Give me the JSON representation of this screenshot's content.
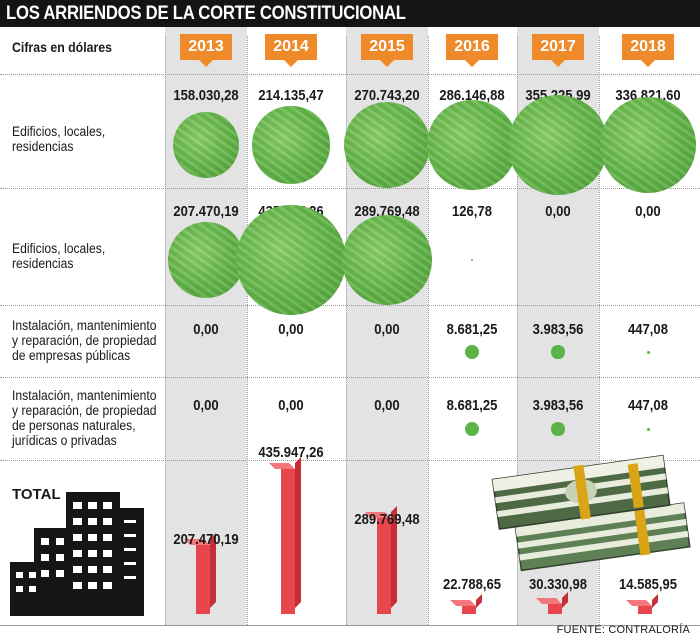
{
  "title": "LOS ARRIENDOS DE LA CORTE CONSTITUCIONAL",
  "subtitle": "Cifras en dólares",
  "source": "FUENTE: CONTRALORÍA",
  "total_label": "TOTAL",
  "colors": {
    "header_bg": "#141414",
    "year_badge": "#ef8a2b",
    "coin_green": "#62b548",
    "bar_red": "#e9454c",
    "column_shade": "#e3e3e4"
  },
  "chart_data": {
    "type": "table",
    "title": "LOS ARRIENDOS DE LA CORTE CONSTITUCIONAL",
    "subtitle": "Cifras en dólares",
    "years": [
      "2013",
      "2014",
      "2015",
      "2016",
      "2017",
      "2018"
    ],
    "rows": [
      {
        "label": "Edificios, locales, residencias",
        "display": [
          "158.030,28",
          "214.135,47",
          "270.743,20",
          "286.146,88",
          "355.225,99",
          "336.821,60"
        ],
        "values": [
          158030.28,
          214135.47,
          270743.2,
          286146.88,
          355225.99,
          336821.6
        ]
      },
      {
        "label": "Edificios, locales, residencias",
        "display": [
          "207.470,19",
          "435.947,26",
          "289.769,48",
          "126,78",
          "0,00",
          "0,00"
        ],
        "values": [
          207470.19,
          435947.26,
          289769.48,
          126.78,
          0,
          0
        ]
      },
      {
        "label": "Instalación, mantenimiento y reparación, de propiedad de empresas públicas",
        "display": [
          "0,00",
          "0,00",
          "0,00",
          "8.681,25",
          "3.983,56",
          "447,08"
        ],
        "values": [
          0,
          0,
          0,
          8681.25,
          3983.56,
          447.08
        ]
      },
      {
        "label": "Instalación, mantenimiento y reparación, de propiedad de personas naturales, jurídicas o privadas",
        "display": [
          "0,00",
          "0,00",
          "0,00",
          "8.681,25",
          "3.983,56",
          "447,08"
        ],
        "values": [
          0,
          0,
          0,
          8681.25,
          3983.56,
          447.08
        ]
      }
    ],
    "total": {
      "label": "TOTAL",
      "display": [
        "207.470,19",
        "435.947,26",
        "289.769,48",
        "22.788,65",
        "30.330,98",
        "14.585,95"
      ],
      "values": [
        207470.19,
        435947.26,
        289769.48,
        22788.65,
        30330.98,
        14585.95
      ]
    }
  }
}
